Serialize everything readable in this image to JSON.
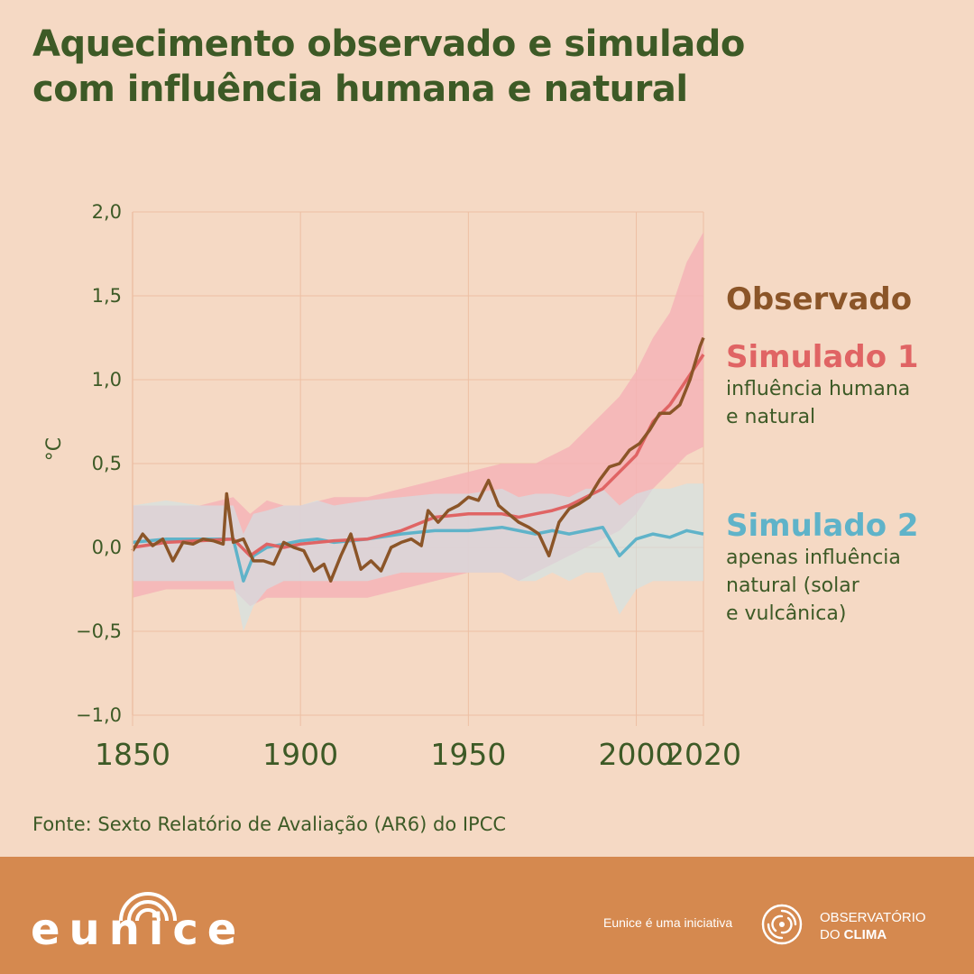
{
  "title": {
    "line1": "Aquecimento observado e simulado",
    "line2": "com influência humana e natural"
  },
  "legend": {
    "observed": {
      "label": "Observado"
    },
    "sim1": {
      "label": "Simulado 1",
      "desc1": "influência humana",
      "desc2": "e natural"
    },
    "sim2": {
      "label": "Simulado 2",
      "desc1": "apenas influência",
      "desc2": "natural (solar",
      "desc3": "e vulcânica)"
    }
  },
  "source": "Fonte: Sexto Relatório de Avaliação (AR6) do IPCC",
  "footer": {
    "logo_text": "eunice",
    "initiative": "Eunice é uma iniciativa",
    "org_line1": "OBSERVATÓRIO",
    "org_line2_prefix": "DO ",
    "org_line2_bold": "CLIMA",
    "icon": "spiral-logo-icon"
  },
  "colors": {
    "background": "#f5d9c4",
    "title": "#3d5a26",
    "observed": "#8b5528",
    "sim1": "#e06464",
    "sim1_band": "#f4b3b7",
    "sim2": "#5fb3c9",
    "sim2_band": "#cde5e9",
    "overlap_band": "#d8b4b5",
    "grid": "#edbfa3",
    "footer": "#d5894f"
  },
  "chart_data": {
    "type": "line",
    "ylabel": "°C",
    "xlim": [
      1850,
      2020
    ],
    "ylim": [
      -1.0,
      2.0
    ],
    "yticks": [
      -1.0,
      -0.5,
      0.0,
      0.5,
      1.0,
      1.5,
      2.0
    ],
    "ytick_labels": [
      "−1,0",
      "−0,5",
      "0,0",
      "0,5",
      "1,0",
      "1,5",
      "2,0"
    ],
    "xticks": [
      1850,
      1900,
      1950,
      2000,
      2020
    ],
    "xtick_labels": [
      "1850",
      "1900",
      "1950",
      "2000",
      "2020"
    ],
    "grid": true,
    "legend_position": "right",
    "series": [
      {
        "name": "Observado",
        "x": [
          1850,
          1853,
          1856,
          1859,
          1862,
          1865,
          1868,
          1871,
          1874,
          1877,
          1878,
          1880,
          1883,
          1886,
          1889,
          1892,
          1895,
          1898,
          1901,
          1904,
          1907,
          1909,
          1912,
          1915,
          1918,
          1921,
          1924,
          1927,
          1930,
          1933,
          1936,
          1938,
          1941,
          1944,
          1947,
          1950,
          1953,
          1956,
          1959,
          1962,
          1965,
          1968,
          1971,
          1974,
          1977,
          1980,
          1983,
          1986,
          1989,
          1992,
          1995,
          1998,
          2001,
          2004,
          2007,
          2010,
          2013,
          2016,
          2019,
          2020
        ],
        "y": [
          -0.02,
          0.08,
          0.01,
          0.05,
          -0.08,
          0.03,
          0.02,
          0.05,
          0.04,
          0.02,
          0.32,
          0.03,
          0.05,
          -0.08,
          -0.08,
          -0.1,
          0.03,
          0.0,
          -0.02,
          -0.14,
          -0.1,
          -0.2,
          -0.05,
          0.08,
          -0.13,
          -0.08,
          -0.14,
          0.0,
          0.03,
          0.05,
          0.01,
          0.22,
          0.15,
          0.22,
          0.25,
          0.3,
          0.28,
          0.4,
          0.25,
          0.2,
          0.15,
          0.12,
          0.08,
          -0.05,
          0.15,
          0.23,
          0.26,
          0.3,
          0.4,
          0.48,
          0.5,
          0.58,
          0.62,
          0.7,
          0.8,
          0.8,
          0.85,
          1.0,
          1.2,
          1.25
        ]
      },
      {
        "name": "Simulado 1",
        "x": [
          1850,
          1860,
          1870,
          1880,
          1885,
          1890,
          1895,
          1900,
          1910,
          1920,
          1930,
          1940,
          1950,
          1960,
          1965,
          1970,
          1975,
          1980,
          1985,
          1990,
          1995,
          2000,
          2005,
          2010,
          2015,
          2020
        ],
        "y": [
          0.0,
          0.03,
          0.04,
          0.05,
          -0.05,
          0.02,
          0.0,
          0.02,
          0.04,
          0.05,
          0.1,
          0.18,
          0.2,
          0.2,
          0.18,
          0.2,
          0.22,
          0.25,
          0.3,
          0.35,
          0.45,
          0.55,
          0.75,
          0.85,
          1.0,
          1.15
        ],
        "band_lower": [
          -0.3,
          -0.25,
          -0.25,
          -0.25,
          -0.35,
          -0.3,
          -0.3,
          -0.3,
          -0.3,
          -0.3,
          -0.25,
          -0.2,
          -0.15,
          -0.15,
          -0.2,
          -0.15,
          -0.1,
          -0.05,
          0.0,
          0.05,
          0.1,
          0.2,
          0.35,
          0.45,
          0.55,
          0.6
        ],
        "band_upper": [
          0.25,
          0.25,
          0.25,
          0.3,
          0.2,
          0.28,
          0.25,
          0.25,
          0.3,
          0.3,
          0.35,
          0.4,
          0.45,
          0.5,
          0.5,
          0.5,
          0.55,
          0.6,
          0.7,
          0.8,
          0.9,
          1.05,
          1.25,
          1.4,
          1.7,
          1.88
        ]
      },
      {
        "name": "Simulado 2",
        "x": [
          1850,
          1860,
          1870,
          1880,
          1883,
          1886,
          1890,
          1895,
          1900,
          1905,
          1910,
          1920,
          1930,
          1940,
          1950,
          1960,
          1965,
          1970,
          1975,
          1980,
          1985,
          1990,
          1995,
          2000,
          2005,
          2010,
          2015,
          2020
        ],
        "y": [
          0.03,
          0.05,
          0.05,
          0.05,
          -0.2,
          -0.05,
          0.0,
          0.02,
          0.04,
          0.05,
          0.03,
          0.05,
          0.08,
          0.1,
          0.1,
          0.12,
          0.1,
          0.08,
          0.1,
          0.08,
          0.1,
          0.12,
          -0.05,
          0.05,
          0.08,
          0.06,
          0.1,
          0.08
        ],
        "band_lower": [
          -0.2,
          -0.2,
          -0.2,
          -0.2,
          -0.5,
          -0.35,
          -0.25,
          -0.2,
          -0.2,
          -0.2,
          -0.2,
          -0.2,
          -0.15,
          -0.15,
          -0.15,
          -0.15,
          -0.2,
          -0.2,
          -0.15,
          -0.2,
          -0.15,
          -0.15,
          -0.4,
          -0.25,
          -0.2,
          -0.2,
          -0.2,
          -0.2
        ],
        "band_upper": [
          0.25,
          0.28,
          0.25,
          0.25,
          0.08,
          0.2,
          0.22,
          0.25,
          0.25,
          0.28,
          0.25,
          0.28,
          0.3,
          0.32,
          0.32,
          0.35,
          0.3,
          0.32,
          0.32,
          0.3,
          0.35,
          0.35,
          0.25,
          0.32,
          0.35,
          0.35,
          0.38,
          0.38
        ]
      }
    ]
  }
}
